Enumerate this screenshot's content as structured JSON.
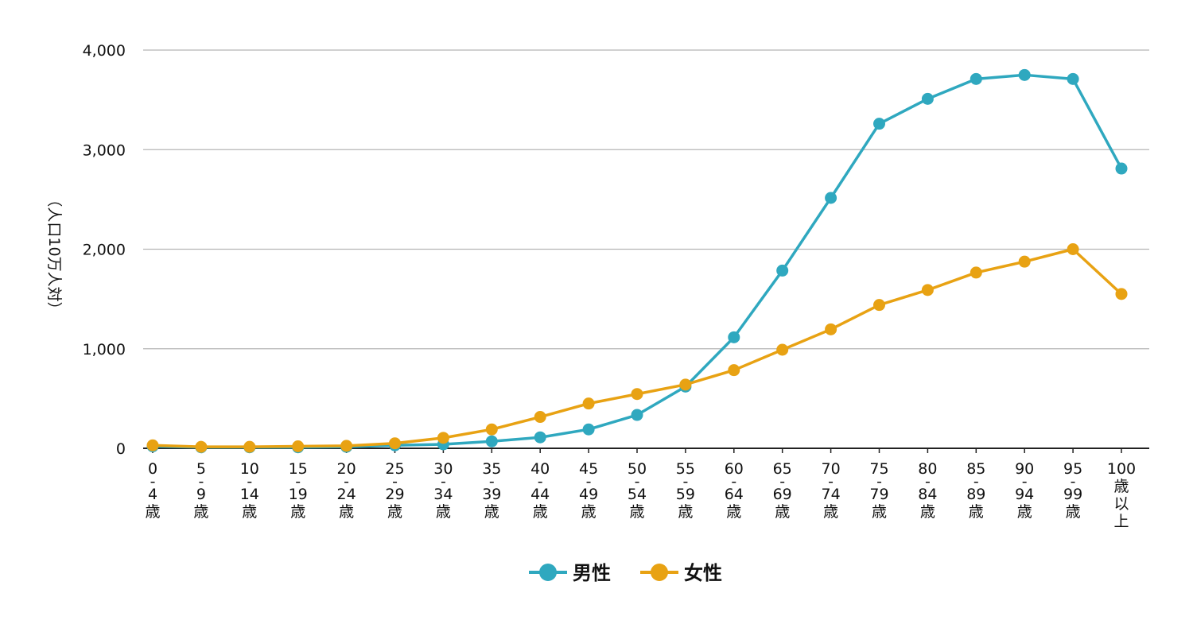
{
  "chart_data": {
    "type": "line",
    "ylabel": "（人口10万人対）",
    "ylim": [
      0,
      4000
    ],
    "yticks": [
      0,
      1000,
      2000,
      3000,
      4000
    ],
    "ytick_labels": [
      "0",
      "1,000",
      "2,000",
      "3,000",
      "4,000"
    ],
    "grid": true,
    "legend_position": "bottom-center",
    "categories": [
      [
        "0",
        "-",
        "4",
        "歳"
      ],
      [
        "5",
        "-",
        "9",
        "歳"
      ],
      [
        "10",
        "-",
        "14",
        "歳"
      ],
      [
        "15",
        "-",
        "19",
        "歳"
      ],
      [
        "20",
        "-",
        "24",
        "歳"
      ],
      [
        "25",
        "-",
        "29",
        "歳"
      ],
      [
        "30",
        "-",
        "34",
        "歳"
      ],
      [
        "35",
        "-",
        "39",
        "歳"
      ],
      [
        "40",
        "-",
        "44",
        "歳"
      ],
      [
        "45",
        "-",
        "49",
        "歳"
      ],
      [
        "50",
        "-",
        "54",
        "歳"
      ],
      [
        "55",
        "-",
        "59",
        "歳"
      ],
      [
        "60",
        "-",
        "64",
        "歳"
      ],
      [
        "65",
        "-",
        "69",
        "歳"
      ],
      [
        "70",
        "-",
        "74",
        "歳"
      ],
      [
        "75",
        "-",
        "79",
        "歳"
      ],
      [
        "80",
        "-",
        "84",
        "歳"
      ],
      [
        "85",
        "-",
        "89",
        "歳"
      ],
      [
        "90",
        "-",
        "94",
        "歳"
      ],
      [
        "95",
        "-",
        "99",
        "歳"
      ],
      [
        "100",
        "歳",
        "以",
        "上"
      ]
    ],
    "series": [
      {
        "name": "男性",
        "color": "#2fa8bf",
        "values": [
          20,
          10,
          10,
          10,
          15,
          30,
          40,
          70,
          110,
          190,
          335,
          620,
          1115,
          1785,
          2515,
          3260,
          3510,
          3710,
          3750,
          3710,
          2810
        ]
      },
      {
        "name": "女性",
        "color": "#e8a213",
        "values": [
          30,
          15,
          15,
          20,
          25,
          50,
          105,
          190,
          315,
          450,
          545,
          640,
          785,
          990,
          1195,
          1440,
          1590,
          1765,
          1875,
          2000,
          1550
        ]
      }
    ]
  }
}
